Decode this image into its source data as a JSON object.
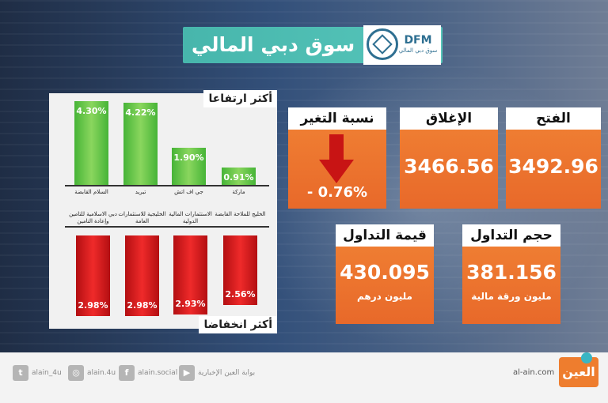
{
  "header": {
    "title": "سوق دبي المالي",
    "logo_text": "DFM",
    "logo_sub": "سوق دبي المالي"
  },
  "chart_data": [
    {
      "type": "bar",
      "title": "أكثر ارتفاعا",
      "categories": [
        "السلام القابضة",
        "تبريد",
        "جي اف اتش",
        "ماركة"
      ],
      "values": [
        4.3,
        4.22,
        1.9,
        0.91
      ],
      "value_labels": [
        "4.30%",
        "4.22%",
        "1.90%",
        "0.91%"
      ],
      "ylim": [
        0,
        4.3
      ],
      "color": "#46b437"
    },
    {
      "type": "bar",
      "title": "أكثر انخفاضا",
      "categories": [
        "دبي الاسلامية للتامين وإعادة التامين",
        "الخليجية للاستثمارات العامة",
        "الاستثمارات المالية الدولية",
        "الخليج للملاحة القابضة"
      ],
      "values": [
        2.98,
        2.98,
        2.93,
        2.56
      ],
      "value_labels": [
        "2.98%",
        "2.98%",
        "2.93%",
        "2.56%"
      ],
      "ylim": [
        0,
        2.98
      ],
      "color": "#d61a1c"
    }
  ],
  "stats": {
    "change": {
      "label": "نسبة التغير",
      "value": "- 0.76%"
    },
    "close": {
      "label": "الإغلاق",
      "value": "3466.56"
    },
    "open": {
      "label": "الفتح",
      "value": "3492.96"
    },
    "trade_value": {
      "label": "قيمة التداول",
      "value": "430.095",
      "unit": "مليون درهم"
    },
    "trade_volume": {
      "label": "حجم التداول",
      "value": "381.156",
      "unit": "مليون ورقة مالية"
    }
  },
  "footer": {
    "twitter": "alain_4u",
    "instagram": "alain.4u",
    "facebook": "alain.social",
    "youtube": "بوابة العين الإخبارية",
    "site": "al-ain.com",
    "brand": "العين"
  },
  "colors": {
    "accent": "#ef7d32",
    "teal": "#47b6ac",
    "up": "#46b437",
    "down": "#d61a1c"
  }
}
